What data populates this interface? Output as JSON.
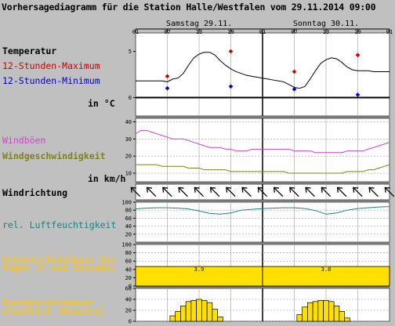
{
  "title": "Vorhersagediagramm für die Station Halle/Westfalen vom 29.11.2014 09:00",
  "colors": {
    "max": "#cc0000",
    "min": "#0000cc",
    "gust": "#cc44cc",
    "wind": "#808020",
    "humidity": "#208080",
    "sun": "#f4c430",
    "sun_bar": "#ffe000"
  },
  "chart_data": [
    {
      "id": "time_axis",
      "type": "table",
      "days": [
        "Samstag 29.11.",
        "Sonntag 30.11."
      ],
      "hour_ticks": [
        {
          "h": 0,
          "label": "01"
        },
        {
          "h": 6,
          "label": "07"
        },
        {
          "h": 12,
          "label": "13"
        },
        {
          "h": 18,
          "label": "19"
        },
        {
          "h": 24,
          "label": "01"
        },
        {
          "h": 30,
          "label": "07"
        },
        {
          "h": 36,
          "label": "13"
        },
        {
          "h": 42,
          "label": "19"
        },
        {
          "h": 48,
          "label": "01"
        }
      ]
    },
    {
      "id": "temperature",
      "type": "line",
      "labels": [
        "Temperatur",
        "12-Stunden-Maximum",
        "12-Stunden-Minimum"
      ],
      "unit": "in °C",
      "ylim": [
        -2,
        7
      ],
      "yticks": [
        0,
        5
      ],
      "x": [
        0,
        1,
        2,
        3,
        4,
        5,
        6,
        7,
        8,
        9,
        10,
        11,
        12,
        13,
        14,
        15,
        16,
        17,
        18,
        19,
        20,
        21,
        22,
        23,
        24,
        25,
        26,
        27,
        28,
        29,
        30,
        31,
        32,
        33,
        34,
        35,
        36,
        37,
        38,
        39,
        40,
        41,
        42,
        43,
        44,
        45,
        46,
        47,
        48
      ],
      "values": [
        1.8,
        1.8,
        1.8,
        1.8,
        1.8,
        1.8,
        1.7,
        2.0,
        2.1,
        2.6,
        3.5,
        4.3,
        4.7,
        4.9,
        4.9,
        4.6,
        4.0,
        3.5,
        3.1,
        2.8,
        2.6,
        2.4,
        2.3,
        2.2,
        2.1,
        2.0,
        1.9,
        1.8,
        1.7,
        1.4,
        1.1,
        1.0,
        1.2,
        2.0,
        2.9,
        3.7,
        4.1,
        4.3,
        4.2,
        3.8,
        3.3,
        3.0,
        2.9,
        2.9,
        2.9,
        2.8,
        2.8,
        2.8,
        2.8
      ],
      "max_points": [
        {
          "x": 6,
          "y": 2.3
        },
        {
          "x": 18,
          "y": 5.0
        },
        {
          "x": 30,
          "y": 2.8
        },
        {
          "x": 42,
          "y": 4.6
        }
      ],
      "min_points": [
        {
          "x": 6,
          "y": 1.0
        },
        {
          "x": 18,
          "y": 1.2
        },
        {
          "x": 30,
          "y": 0.9
        },
        {
          "x": 42,
          "y": 0.3
        }
      ]
    },
    {
      "id": "wind",
      "type": "line",
      "unit": "in km/h",
      "ylim": [
        5,
        42
      ],
      "yticks": [
        10,
        20,
        30,
        40
      ],
      "series": [
        {
          "name": "Windböen",
          "values": [
            33,
            35,
            35,
            34,
            33,
            32,
            31,
            30,
            30,
            30,
            29,
            28,
            27,
            26,
            25,
            25,
            25,
            24,
            24,
            23,
            23,
            23,
            24,
            24,
            24,
            24,
            24,
            24,
            24,
            24,
            23,
            23,
            23,
            23,
            22,
            22,
            22,
            22,
            22,
            22,
            23,
            23,
            23,
            23,
            24,
            25,
            26,
            27,
            28
          ]
        },
        {
          "name": "Windgeschwindigkeit",
          "values": [
            15,
            15,
            15,
            15,
            15,
            14,
            14,
            14,
            14,
            14,
            13,
            13,
            13,
            12,
            12,
            12,
            12,
            12,
            11,
            11,
            11,
            11,
            11,
            11,
            11,
            11,
            11,
            11,
            11,
            10,
            10,
            10,
            10,
            10,
            10,
            10,
            10,
            10,
            10,
            10,
            11,
            11,
            11,
            11,
            12,
            12,
            13,
            14,
            15
          ]
        }
      ]
    },
    {
      "id": "wind_direction",
      "type": "table",
      "label": "Windrichtung",
      "x": [
        0,
        3,
        6,
        9,
        12,
        15,
        18,
        21,
        24,
        27,
        30,
        33,
        36,
        39,
        42,
        45,
        48
      ],
      "direction_deg": [
        135,
        135,
        135,
        135,
        135,
        135,
        135,
        135,
        135,
        135,
        135,
        135,
        135,
        135,
        135,
        135,
        135
      ]
    },
    {
      "id": "humidity",
      "type": "line",
      "label": "rel. Luftfeuchtigkeit",
      "ylim": [
        0,
        100
      ],
      "yticks": [
        20,
        40,
        60,
        80,
        100
      ],
      "x": [
        0,
        2,
        4,
        6,
        8,
        10,
        12,
        14,
        16,
        18,
        20,
        22,
        24,
        26,
        28,
        30,
        32,
        34,
        36,
        38,
        40,
        42,
        44,
        46,
        48
      ],
      "values": [
        83,
        85,
        86,
        86,
        85,
        83,
        78,
        72,
        70,
        73,
        80,
        82,
        84,
        85,
        86,
        86,
        84,
        79,
        70,
        73,
        80,
        84,
        86,
        88,
        89
      ]
    },
    {
      "id": "sunshine_day",
      "type": "bar",
      "label": "Sonnenscheindauer des Tages (% und Stunden)",
      "ylim": [
        0,
        100
      ],
      "yticks": [
        0,
        20,
        40,
        60,
        80,
        100
      ],
      "categories": [
        "Samstag 29.11.",
        "Sonntag 30.11."
      ],
      "values": [
        47,
        47
      ],
      "data_labels": [
        "3.9",
        "3.8"
      ]
    },
    {
      "id": "sunshine_hourly",
      "type": "bar",
      "label": "Sonnenscheindauer stündlich (Minuten)",
      "ylim": [
        0,
        60
      ],
      "yticks": [
        0,
        20,
        40,
        60
      ],
      "x": [
        7,
        8,
        9,
        10,
        11,
        12,
        13,
        14,
        15,
        16,
        31,
        32,
        33,
        34,
        35,
        36,
        37,
        38,
        39,
        40
      ],
      "values": [
        10,
        18,
        28,
        36,
        38,
        40,
        38,
        34,
        22,
        8,
        12,
        26,
        34,
        36,
        38,
        38,
        36,
        28,
        18,
        6
      ]
    }
  ]
}
